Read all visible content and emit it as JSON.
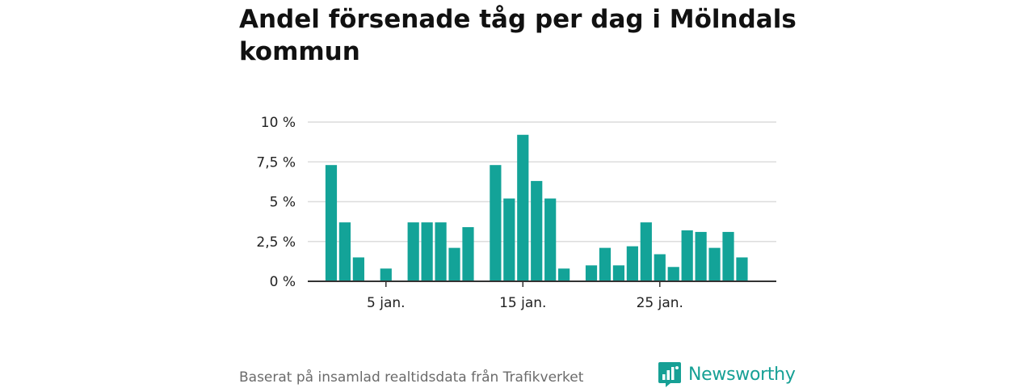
{
  "title": "Andel försenade tåg per dag i Mölndals kommun",
  "source": "Baserat på insamlad realtidsdata från Trafikverket",
  "brand": {
    "name": "Newsworthy",
    "icon": "newsworthy-logo-icon"
  },
  "colors": {
    "bar": "#13a398",
    "grid": "#dcdcdc",
    "axis": "#333333",
    "brand": "#16a095"
  },
  "chart_data": {
    "type": "bar",
    "x": [
      1,
      2,
      3,
      4,
      5,
      6,
      7,
      8,
      9,
      10,
      11,
      12,
      13,
      14,
      15,
      16,
      17,
      18,
      19,
      20,
      21,
      22,
      23,
      24,
      25,
      26,
      27,
      28,
      29,
      30,
      31
    ],
    "values": [
      7.3,
      3.7,
      1.5,
      0,
      0.8,
      0,
      3.7,
      3.7,
      3.7,
      2.1,
      3.4,
      0,
      7.3,
      5.2,
      9.2,
      6.3,
      5.2,
      0.8,
      0,
      1.0,
      2.1,
      1.0,
      2.2,
      3.7,
      1.7,
      0.9,
      3.2,
      3.1,
      2.1,
      3.1,
      1.5
    ],
    "xticks": [
      {
        "x": 5,
        "label": "5 jan."
      },
      {
        "x": 15,
        "label": "15 jan."
      },
      {
        "x": 25,
        "label": "25 jan."
      }
    ],
    "yticks": [
      {
        "value": 0,
        "label": "0 %"
      },
      {
        "value": 2.5,
        "label": "2,5 %"
      },
      {
        "value": 5,
        "label": "5 %"
      },
      {
        "value": 7.5,
        "label": "7,5 %"
      },
      {
        "value": 10,
        "label": "10 %"
      }
    ],
    "ylim": [
      0,
      10
    ],
    "grid": true
  }
}
